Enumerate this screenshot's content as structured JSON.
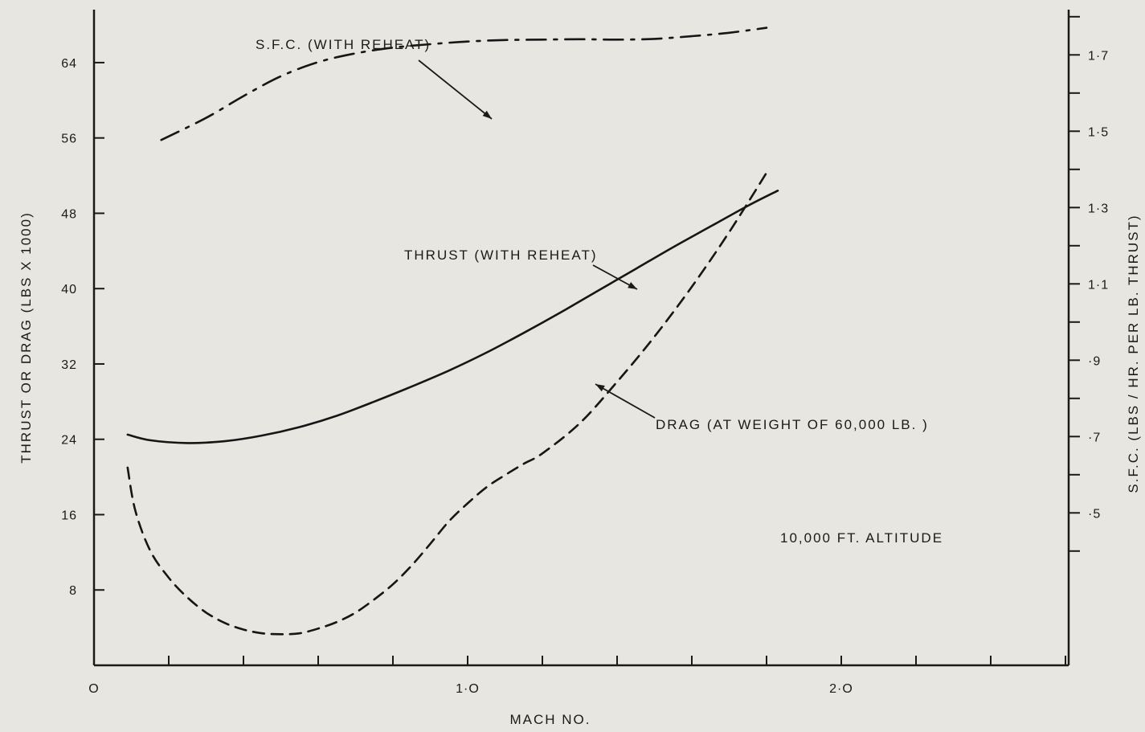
{
  "chart_data": {
    "type": "line",
    "title": "",
    "xlabel": "MACH NO.",
    "ylabel_left": "THRUST OR DRAG (LBS X 1000)",
    "ylabel_right": "S.F.C. (LBS / HR. PER LB. THRUST)",
    "xlim": [
      0,
      2.6
    ],
    "ylim_left": [
      0,
      70
    ],
    "ylim_right": [
      0.1,
      1.9
    ],
    "x_tick_labels": [
      {
        "value": 0,
        "label": "O"
      },
      {
        "value": 1.0,
        "label": "1·O"
      },
      {
        "value": 2.0,
        "label": "2·O"
      }
    ],
    "x_minor_step": 0.2,
    "y_left_ticks": [
      8,
      16,
      24,
      32,
      40,
      48,
      56,
      64
    ],
    "y_right_ticks": [
      {
        "value": 0.5,
        "label": "·5"
      },
      {
        "value": 0.7,
        "label": "·7"
      },
      {
        "value": 0.9,
        "label": "·9"
      },
      {
        "value": 1.1,
        "label": "1·1"
      },
      {
        "value": 1.3,
        "label": "1·3"
      },
      {
        "value": 1.5,
        "label": "1·5"
      },
      {
        "value": 1.7,
        "label": "1·7"
      }
    ],
    "series": [
      {
        "name": "THRUST (WITH REHEAT)",
        "axis": "left",
        "style": "solid",
        "x": [
          0.09,
          0.15,
          0.25,
          0.35,
          0.45,
          0.55,
          0.65,
          0.75,
          0.85,
          0.95,
          1.05,
          1.15,
          1.25,
          1.35,
          1.45,
          1.55,
          1.65,
          1.75,
          1.83
        ],
        "y": [
          24.5,
          23.9,
          23.6,
          23.8,
          24.4,
          25.3,
          26.5,
          28.0,
          29.6,
          31.3,
          33.2,
          35.3,
          37.5,
          39.8,
          42.1,
          44.4,
          46.6,
          48.8,
          50.4
        ]
      },
      {
        "name": "DRAG (AT WEIGHT OF 60,000 LB.)",
        "axis": "left",
        "style": "dashed",
        "x": [
          0.09,
          0.11,
          0.15,
          0.2,
          0.25,
          0.3,
          0.35,
          0.4,
          0.45,
          0.5,
          0.55,
          0.6,
          0.65,
          0.7,
          0.75,
          0.8,
          0.85,
          0.9,
          0.95,
          1.0,
          1.05,
          1.1,
          1.15,
          1.2,
          1.3,
          1.4,
          1.5,
          1.6,
          1.7,
          1.8
        ],
        "y": [
          21,
          16.5,
          12.2,
          9.3,
          7.2,
          5.6,
          4.5,
          3.8,
          3.4,
          3.3,
          3.4,
          3.9,
          4.6,
          5.6,
          7.0,
          8.6,
          10.6,
          12.9,
          15.3,
          17.2,
          18.9,
          20.2,
          21.4,
          22.5,
          25.7,
          30.1,
          34.9,
          40.2,
          46.0,
          52.3
        ]
      },
      {
        "name": "S.F.C. (WITH REHEAT)",
        "axis": "right",
        "style": "dash-dot",
        "x": [
          0.18,
          0.3,
          0.4,
          0.5,
          0.6,
          0.7,
          0.8,
          0.9,
          1.0,
          1.1,
          1.2,
          1.3,
          1.4,
          1.5,
          1.6,
          1.7,
          1.8
        ],
        "y": [
          1.477,
          1.535,
          1.592,
          1.644,
          1.681,
          1.704,
          1.719,
          1.728,
          1.735,
          1.739,
          1.74,
          1.741,
          1.74,
          1.742,
          1.749,
          1.758,
          1.771
        ]
      }
    ],
    "annotations": [
      {
        "text": "S.F.C. (WITH REHEAT)"
      },
      {
        "text": "THRUST (WITH REHEAT)"
      },
      {
        "text": "DRAG (AT WEIGHT OF 60,000 LB. )"
      },
      {
        "text": "10,000 FT. ALTITUDE"
      }
    ]
  }
}
